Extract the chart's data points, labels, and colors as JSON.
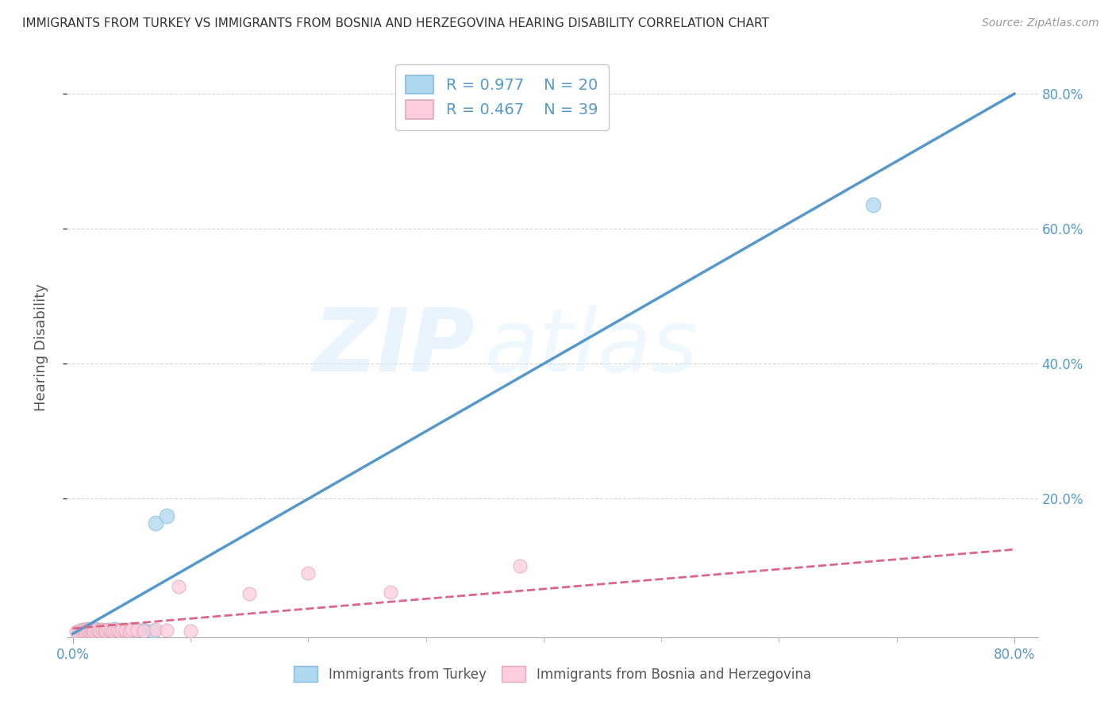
{
  "title": "IMMIGRANTS FROM TURKEY VS IMMIGRANTS FROM BOSNIA AND HERZEGOVINA HEARING DISABILITY CORRELATION CHART",
  "source": "Source: ZipAtlas.com",
  "ylabel": "Hearing Disability",
  "watermark_zip": "ZIP",
  "watermark_atlas": "atlas",
  "background_color": "#ffffff",
  "grid_color": "#cccccc",
  "turkey_color": "#add8f0",
  "turkey_line_color": "#5599CC",
  "turkey_edge_color": "#88bbdd",
  "bosnia_color": "#ffccdd",
  "bosnia_line_color": "#DD6688",
  "bosnia_edge_color": "#ddaabb",
  "turkey_R": 0.977,
  "turkey_N": 20,
  "bosnia_R": 0.467,
  "bosnia_N": 39,
  "legend_label_turkey": "Immigrants from Turkey",
  "legend_label_bosnia": "Immigrants from Bosnia and Herzegovina",
  "xlim": [
    -0.005,
    0.82
  ],
  "ylim": [
    -0.005,
    0.855
  ],
  "xtick_left_label": "0.0%",
  "xtick_right_label": "80.0%",
  "xtick_left_val": 0.0,
  "xtick_right_val": 0.8,
  "ytick_vals": [
    0.2,
    0.4,
    0.6,
    0.8
  ],
  "ytick_labels": [
    "20.0%",
    "40.0%",
    "60.0%",
    "80.0%"
  ],
  "x_minor_ticks": [
    0.1,
    0.2,
    0.3,
    0.4,
    0.5,
    0.6,
    0.7
  ],
  "turkey_line_x": [
    0.0,
    0.8
  ],
  "turkey_line_y": [
    0.0,
    0.8
  ],
  "bosnia_line_x": [
    0.0,
    0.8
  ],
  "bosnia_line_y": [
    0.008,
    0.125
  ],
  "turkey_scatter_x": [
    0.005,
    0.008,
    0.01,
    0.012,
    0.015,
    0.018,
    0.02,
    0.022,
    0.025,
    0.03,
    0.035,
    0.04,
    0.045,
    0.05,
    0.06,
    0.07,
    0.08,
    0.05,
    0.068,
    0.68
  ],
  "turkey_scatter_y": [
    0.003,
    0.005,
    0.004,
    0.006,
    0.005,
    0.004,
    0.006,
    0.005,
    0.004,
    0.005,
    0.006,
    0.005,
    0.004,
    0.006,
    0.005,
    0.164,
    0.175,
    0.003,
    0.004,
    0.635
  ],
  "bosnia_scatter_x": [
    0.003,
    0.005,
    0.007,
    0.008,
    0.009,
    0.01,
    0.011,
    0.012,
    0.013,
    0.015,
    0.016,
    0.017,
    0.018,
    0.02,
    0.022,
    0.023,
    0.025,
    0.027,
    0.028,
    0.03,
    0.032,
    0.034,
    0.035,
    0.038,
    0.04,
    0.042,
    0.045,
    0.048,
    0.05,
    0.055,
    0.06,
    0.07,
    0.08,
    0.09,
    0.15,
    0.1,
    0.2,
    0.27,
    0.38
  ],
  "bosnia_scatter_y": [
    0.003,
    0.004,
    0.005,
    0.004,
    0.006,
    0.005,
    0.004,
    0.006,
    0.005,
    0.004,
    0.006,
    0.005,
    0.004,
    0.006,
    0.005,
    0.004,
    0.006,
    0.005,
    0.004,
    0.006,
    0.005,
    0.004,
    0.006,
    0.005,
    0.004,
    0.006,
    0.005,
    0.004,
    0.006,
    0.005,
    0.004,
    0.006,
    0.005,
    0.07,
    0.06,
    0.004,
    0.09,
    0.062,
    0.1
  ],
  "tick_color": "#5599CC",
  "title_color": "#333333",
  "source_color": "#999999",
  "ylabel_color": "#555555",
  "legend_text_color": "#5599CC",
  "bottom_legend_color": "#555555"
}
